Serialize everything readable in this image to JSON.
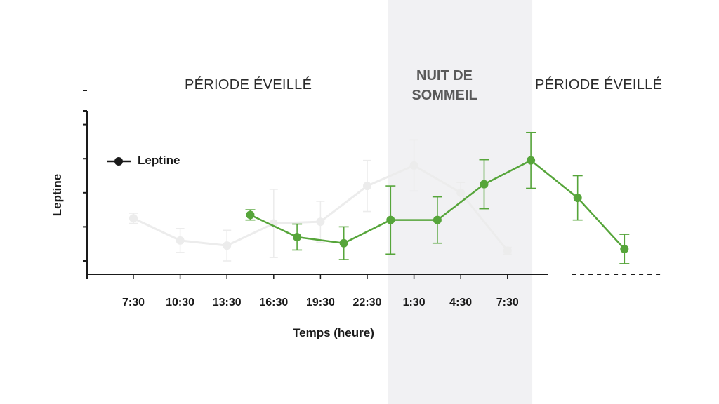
{
  "labels": {
    "period_left": "PÉRIODE ÉVEILLÉ",
    "period_right": "PÉRIODE ÉVEILLÉ",
    "night_line1": "NUIT DE",
    "night_line2": "SOMMEIL",
    "ylabel": "Leptine",
    "xlabel": "Temps (heure)",
    "legend": "Leptine"
  },
  "colors": {
    "series": "#56a53a",
    "faded": "#ececec",
    "night_band": "#f1f1f3",
    "axis": "#1a1a1a"
  },
  "chart_data": {
    "type": "line",
    "xlabel": "Temps (heure)",
    "ylabel": "Leptine",
    "x_ticks": [
      "7:30",
      "10:30",
      "13:30",
      "16:30",
      "19:30",
      "22:30",
      "1:30",
      "4:30",
      "7:30"
    ],
    "xlim": [
      0,
      11
    ],
    "ylim": [
      0,
      5
    ],
    "y_tick_values": [
      0,
      1,
      2,
      3,
      4,
      5
    ],
    "y_tick_labels": "none",
    "grid": false,
    "legend_position": "top-left",
    "shaded_region": {
      "x": [
        5.5,
        8.5
      ],
      "label": "NUIT DE SOMMEIL"
    },
    "series": [
      {
        "name": "Leptine",
        "style": "faded",
        "x": [
          0,
          1,
          2,
          3,
          4,
          5,
          6,
          7,
          8
        ],
        "y": [
          1.25,
          0.6,
          0.45,
          1.1,
          1.15,
          2.2,
          2.8,
          2.0,
          0.3
        ],
        "err": [
          0.15,
          0.35,
          0.45,
          1.0,
          0.6,
          0.75,
          0.75,
          0.3,
          0.1
        ]
      },
      {
        "name": "Leptine",
        "style": "highlight",
        "x": [
          2.5,
          3.5,
          4.5,
          5.5,
          6.5,
          7.5,
          8.5,
          9.5,
          10.5
        ],
        "y": [
          1.35,
          0.7,
          0.52,
          1.2,
          1.2,
          2.25,
          2.95,
          1.85,
          0.35
        ],
        "err": [
          0.15,
          0.38,
          0.48,
          1.0,
          0.68,
          0.72,
          0.82,
          0.65,
          0.43
        ]
      }
    ],
    "baseline": {
      "y": 0,
      "style": "dashed",
      "from_x": 8.5,
      "to_x": 11.3
    }
  }
}
